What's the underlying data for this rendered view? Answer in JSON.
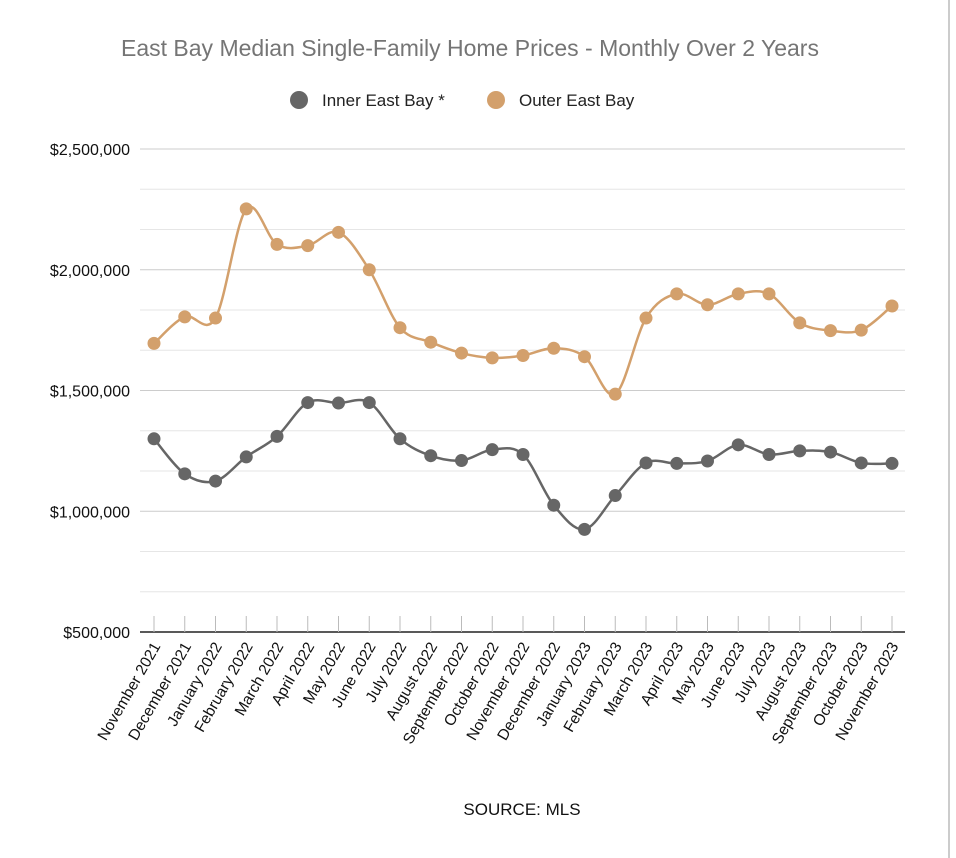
{
  "chart_data": {
    "type": "line",
    "title": "East Bay Median Single-Family Home Prices - Monthly Over 2 Years",
    "categories": [
      "November 2021",
      "December 2021",
      "January 2022",
      "February 2022",
      "March 2022",
      "April 2022",
      "May 2022",
      "June 2022",
      "July 2022",
      "August 2022",
      "September 2022",
      "October 2022",
      "November 2022",
      "December 2022",
      "January 2023",
      "February 2023",
      "March 2023",
      "April 2023",
      "May 2023",
      "June 2023",
      "July 2023",
      "August 2023",
      "September 2023",
      "October 2023",
      "November 2023"
    ],
    "series": [
      {
        "name": "Inner East Bay *",
        "color": "#666666",
        "values": [
          1300000,
          1155000,
          1125000,
          1225000,
          1310000,
          1450000,
          1448000,
          1450000,
          1300000,
          1230000,
          1210000,
          1255000,
          1235000,
          1025000,
          925000,
          1065000,
          1200000,
          1198000,
          1208000,
          1275000,
          1235000,
          1250000,
          1245000,
          1200000,
          1198000
        ]
      },
      {
        "name": "Outer East Bay",
        "color": "#d3a06c",
        "values": [
          1695000,
          1805000,
          1800000,
          2252000,
          2105000,
          2100000,
          2155000,
          2000000,
          1760000,
          1700000,
          1655000,
          1635000,
          1645000,
          1675000,
          1640000,
          1485000,
          1800000,
          1900000,
          1855000,
          1900000,
          1900000,
          1780000,
          1748000,
          1750000,
          1850000
        ]
      }
    ],
    "yticks": [
      "$2,500,000",
      "$2,000,000",
      "$1,500,000",
      "$1,000,000",
      "$500,000"
    ],
    "ylim": [
      500000,
      2500000
    ],
    "grid": true,
    "legend": "top-center",
    "source": "SOURCE: MLS"
  }
}
